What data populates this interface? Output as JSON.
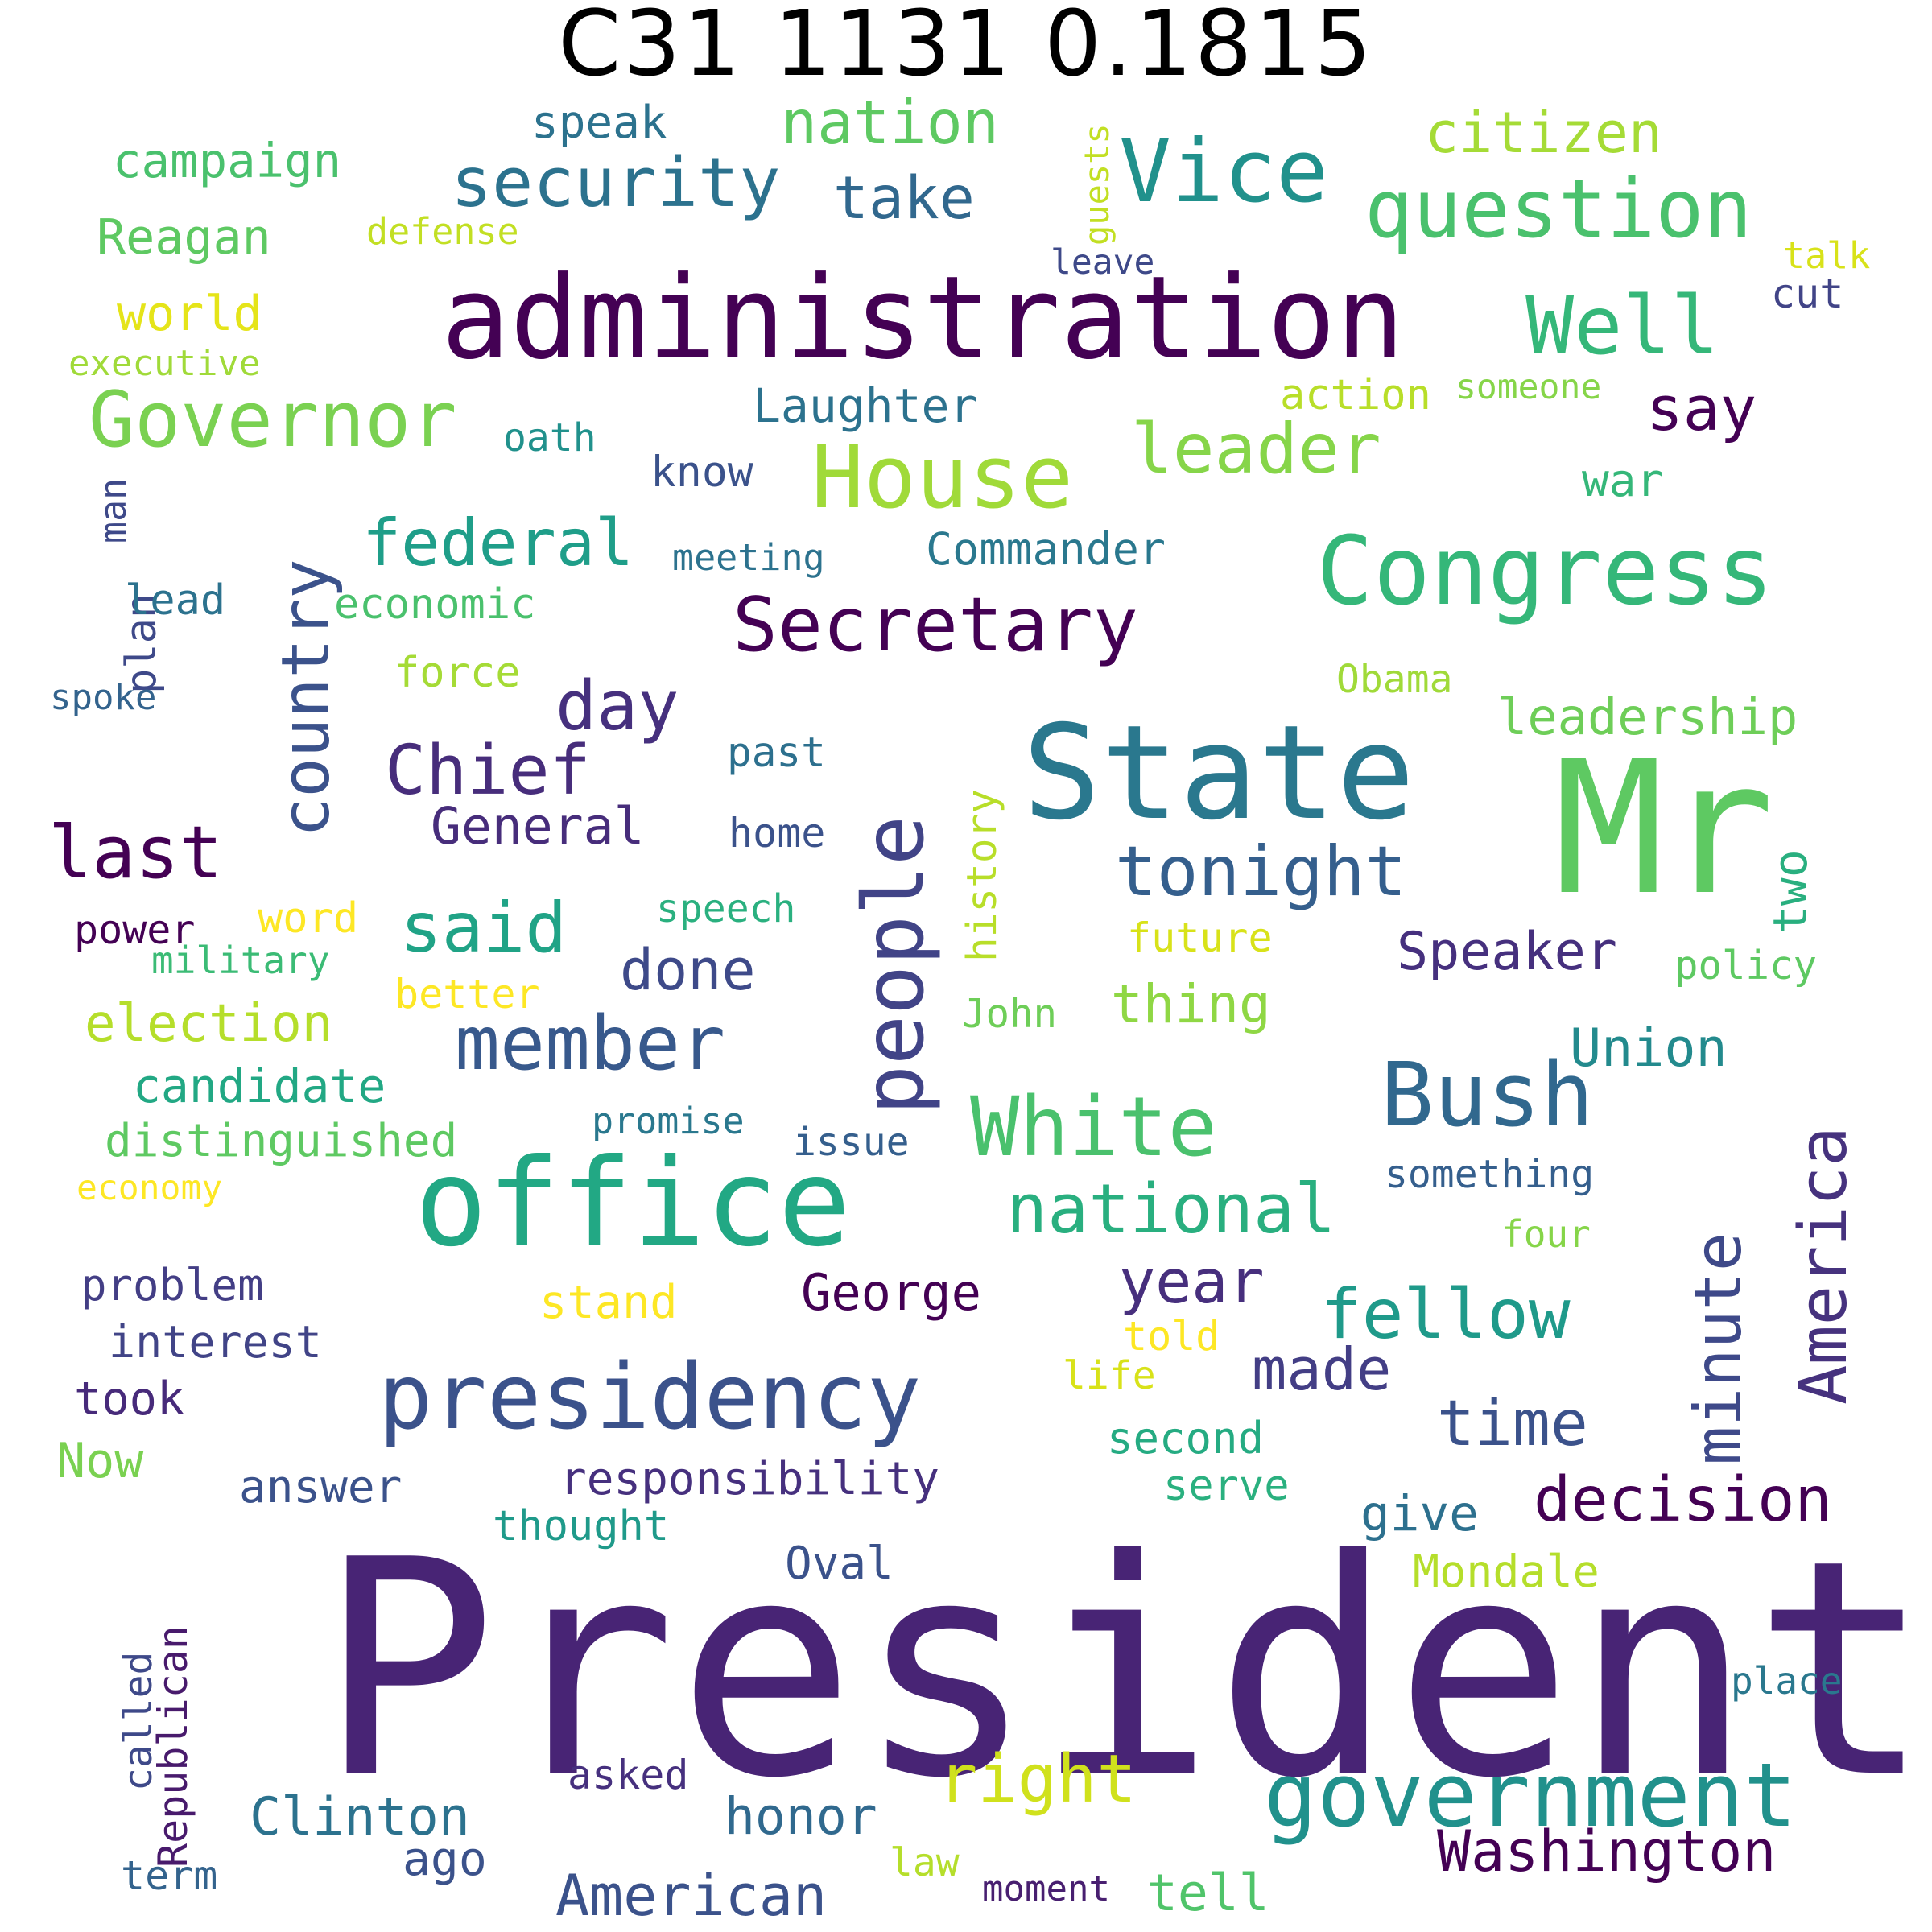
{
  "title": "C31 1131 0.1815",
  "words": [
    {
      "text": "President",
      "color": "#482475"
    },
    {
      "text": "administration",
      "color": "#440154"
    },
    {
      "text": "Mr",
      "color": "#5ec962"
    },
    {
      "text": "State",
      "color": "#2a788e"
    },
    {
      "text": "office",
      "color": "#22a884"
    },
    {
      "text": "Congress",
      "color": "#35b779"
    },
    {
      "text": "presidency",
      "color": "#3b528b"
    },
    {
      "text": "government",
      "color": "#21918c"
    },
    {
      "text": "people",
      "color": "#414487"
    },
    {
      "text": "House",
      "color": "#a0da39"
    },
    {
      "text": "Bush",
      "color": "#31688e"
    },
    {
      "text": "White",
      "color": "#4ac16d"
    },
    {
      "text": "Vice",
      "color": "#21918c"
    },
    {
      "text": "question",
      "color": "#4ac16d"
    },
    {
      "text": "Well",
      "color": "#35b779"
    },
    {
      "text": "security",
      "color": "#2c728e"
    },
    {
      "text": "Secretary",
      "color": "#440154"
    },
    {
      "text": "Governor",
      "color": "#7ad151"
    },
    {
      "text": "country",
      "color": "#3b528b"
    },
    {
      "text": "member",
      "color": "#38598c"
    },
    {
      "text": "tonight",
      "color": "#355f8d"
    },
    {
      "text": "America",
      "color": "#46327e"
    },
    {
      "text": "national",
      "color": "#29af7f"
    },
    {
      "text": "minute",
      "color": "#3e4989"
    },
    {
      "text": "last",
      "color": "#440154"
    },
    {
      "text": "said",
      "color": "#20a386"
    },
    {
      "text": "Chief",
      "color": "#472d7b"
    },
    {
      "text": "leader",
      "color": "#86d549"
    },
    {
      "text": "right",
      "color": "#d0e11c"
    },
    {
      "text": "federal",
      "color": "#1f9e89"
    },
    {
      "text": "day",
      "color": "#46307e"
    },
    {
      "text": "fellow",
      "color": "#1f9a8a"
    },
    {
      "text": "decision",
      "color": "#440154"
    },
    {
      "text": "Washington",
      "color": "#440154"
    },
    {
      "text": "American",
      "color": "#3b528b"
    },
    {
      "text": "take",
      "color": "#31688e"
    },
    {
      "text": "nation",
      "color": "#5ec962"
    },
    {
      "text": "citizen",
      "color": "#a5db36"
    },
    {
      "text": "say",
      "color": "#440154"
    },
    {
      "text": "year",
      "color": "#472f7d"
    },
    {
      "text": "time",
      "color": "#3b528b"
    },
    {
      "text": "done",
      "color": "#3e4a89"
    },
    {
      "text": "Speaker",
      "color": "#46307e"
    },
    {
      "text": "made",
      "color": "#433e85"
    },
    {
      "text": "Clinton",
      "color": "#2c728e"
    },
    {
      "text": "General",
      "color": "#472d7b"
    },
    {
      "text": "George",
      "color": "#440154"
    },
    {
      "text": "election",
      "color": "#b5de2b"
    },
    {
      "text": "Union",
      "color": "#238a8d"
    },
    {
      "text": "thing",
      "color": "#8fd744"
    },
    {
      "text": "leadership",
      "color": "#6ece58"
    },
    {
      "text": "give",
      "color": "#2d708e"
    },
    {
      "text": "honor",
      "color": "#30698e"
    },
    {
      "text": "tell",
      "color": "#50c46a"
    },
    {
      "text": "two",
      "color": "#29af7f"
    },
    {
      "text": "Reagan",
      "color": "#5ec962"
    },
    {
      "text": "Laughter",
      "color": "#2c728e"
    },
    {
      "text": "campaign",
      "color": "#4ac16d"
    },
    {
      "text": "candidate",
      "color": "#22a884"
    },
    {
      "text": "distinguished",
      "color": "#5ec962"
    },
    {
      "text": "responsibility",
      "color": "#46307e"
    },
    {
      "text": "Commander",
      "color": "#2a788e"
    },
    {
      "text": "world",
      "color": "#e5e419"
    },
    {
      "text": "war",
      "color": "#35b779"
    },
    {
      "text": "stand",
      "color": "#fde725"
    },
    {
      "text": "speak",
      "color": "#2c728e"
    },
    {
      "text": "problem",
      "color": "#433e85"
    },
    {
      "text": "interest",
      "color": "#414487"
    },
    {
      "text": "took",
      "color": "#472a7a"
    },
    {
      "text": "Now",
      "color": "#7ad151"
    },
    {
      "text": "answer",
      "color": "#3b528b"
    },
    {
      "text": "know",
      "color": "#3b528b"
    },
    {
      "text": "thought",
      "color": "#1f9a8a"
    },
    {
      "text": "Oval",
      "color": "#3b528b"
    },
    {
      "text": "Mondale",
      "color": "#b5de2b"
    },
    {
      "text": "second",
      "color": "#25ab82"
    },
    {
      "text": "history",
      "color": "#b8de29"
    },
    {
      "text": "ago",
      "color": "#3b528b"
    },
    {
      "text": "asked",
      "color": "#46307e"
    },
    {
      "text": "Republican",
      "color": "#481a6c"
    },
    {
      "text": "term",
      "color": "#33638d"
    },
    {
      "text": "plan",
      "color": "#3e4989"
    },
    {
      "text": "word",
      "color": "#fde725"
    },
    {
      "text": "cut",
      "color": "#414487"
    },
    {
      "text": "past",
      "color": "#2d708e"
    },
    {
      "text": "home",
      "color": "#3b528b"
    },
    {
      "text": "economic",
      "color": "#4ac16d"
    },
    {
      "text": "serve",
      "color": "#2ab07f"
    },
    {
      "text": "speech",
      "color": "#2ab07f"
    },
    {
      "text": "lead",
      "color": "#2c728e"
    },
    {
      "text": "force",
      "color": "#a5db36"
    },
    {
      "text": "power",
      "color": "#440154"
    },
    {
      "text": "Obama",
      "color": "#a0da39"
    },
    {
      "text": "future",
      "color": "#d8e219"
    },
    {
      "text": "John",
      "color": "#6ece58"
    },
    {
      "text": "action",
      "color": "#b8de29"
    },
    {
      "text": "oath",
      "color": "#21918c"
    },
    {
      "text": "called",
      "color": "#3e4989"
    },
    {
      "text": "policy",
      "color": "#5ec962"
    },
    {
      "text": "issue",
      "color": "#355f8d"
    },
    {
      "text": "military",
      "color": "#3bbb75"
    },
    {
      "text": "better",
      "color": "#fde725"
    },
    {
      "text": "place",
      "color": "#2a788e"
    },
    {
      "text": "told",
      "color": "#fde725"
    },
    {
      "text": "meeting",
      "color": "#2c728e"
    },
    {
      "text": "something",
      "color": "#355f8d"
    },
    {
      "text": "four",
      "color": "#86d549"
    },
    {
      "text": "promise",
      "color": "#2a788e"
    },
    {
      "text": "life",
      "color": "#d8e219"
    },
    {
      "text": "law",
      "color": "#b5de2b"
    },
    {
      "text": "talk",
      "color": "#d8e219"
    },
    {
      "text": "guests",
      "color": "#c2df23"
    },
    {
      "text": "moment",
      "color": "#481f70"
    },
    {
      "text": "economy",
      "color": "#fde725"
    },
    {
      "text": "executive",
      "color": "#a0da39"
    },
    {
      "text": "spoke",
      "color": "#33638d"
    },
    {
      "text": "defense",
      "color": "#c2df23"
    },
    {
      "text": "leave",
      "color": "#3e4989"
    },
    {
      "text": "someone",
      "color": "#86d549"
    },
    {
      "text": "man",
      "color": "#3e4989"
    }
  ]
}
